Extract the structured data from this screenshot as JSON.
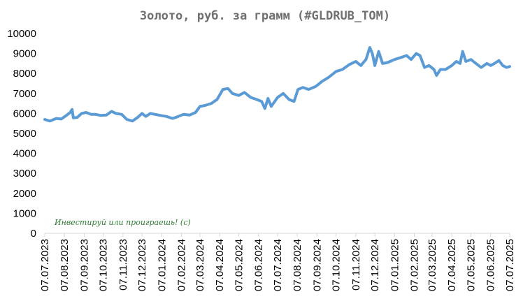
{
  "chart_data": {
    "type": "line",
    "title": "Золото, руб. за грамм (#GLDRUB_TOM)",
    "xlabel": "",
    "ylabel": "",
    "ylim": [
      0,
      10000
    ],
    "y_ticks": [
      0,
      1000,
      2000,
      3000,
      4000,
      5000,
      6000,
      7000,
      8000,
      9000,
      10000
    ],
    "x_ticks": [
      "07.07.2023",
      "07.08.2023",
      "07.09.2023",
      "07.10.2023",
      "07.11.2023",
      "07.12.2023",
      "07.01.2024",
      "07.02.2024",
      "07.03.2024",
      "07.04.2024",
      "07.05.2024",
      "07.06.2024",
      "07.07.2024",
      "07.08.2024",
      "07.09.2024",
      "07.10.2024",
      "07.11.2024",
      "07.12.2024",
      "07.01.2025",
      "07.02.2025",
      "07.03.2025",
      "07.04.2025",
      "07.05.2025",
      "07.06.2025",
      "07.07.2025"
    ],
    "grid": false,
    "line_color": "#5b9bd5",
    "annotation": "Инвестируй или проиграешь! (с)",
    "series": [
      {
        "name": "",
        "points": [
          [
            "07.07.2023",
            5700
          ],
          [
            "15.07.2023",
            5620
          ],
          [
            "25.07.2023",
            5750
          ],
          [
            "02.08.2023",
            5720
          ],
          [
            "10.08.2023",
            5900
          ],
          [
            "16.08.2023",
            6050
          ],
          [
            "19.08.2023",
            6200
          ],
          [
            "21.08.2023",
            5780
          ],
          [
            "27.08.2023",
            5800
          ],
          [
            "03.09.2023",
            6000
          ],
          [
            "10.09.2023",
            6050
          ],
          [
            "18.09.2023",
            5950
          ],
          [
            "25.09.2023",
            5950
          ],
          [
            "03.10.2023",
            5900
          ],
          [
            "12.10.2023",
            5920
          ],
          [
            "20.10.2023",
            6100
          ],
          [
            "27.10.2023",
            6000
          ],
          [
            "05.11.2023",
            5950
          ],
          [
            "13.11.2023",
            5700
          ],
          [
            "22.11.2023",
            5620
          ],
          [
            "30.11.2023",
            5800
          ],
          [
            "07.12.2023",
            6000
          ],
          [
            "13.12.2023",
            5850
          ],
          [
            "20.12.2023",
            6000
          ],
          [
            "05.01.2024",
            5900
          ],
          [
            "14.01.2024",
            5850
          ],
          [
            "24.01.2024",
            5750
          ],
          [
            "02.02.2024",
            5850
          ],
          [
            "10.02.2024",
            5950
          ],
          [
            "20.02.2024",
            5920
          ],
          [
            "29.02.2024",
            6050
          ],
          [
            "07.03.2024",
            6350
          ],
          [
            "15.03.2024",
            6400
          ],
          [
            "25.03.2024",
            6500
          ],
          [
            "03.04.2024",
            6700
          ],
          [
            "12.04.2024",
            7200
          ],
          [
            "20.04.2024",
            7250
          ],
          [
            "27.04.2024",
            7000
          ],
          [
            "07.05.2024",
            6900
          ],
          [
            "16.05.2024",
            7050
          ],
          [
            "26.05.2024",
            6800
          ],
          [
            "04.06.2024",
            6700
          ],
          [
            "12.06.2024",
            6600
          ],
          [
            "17.06.2024",
            6250
          ],
          [
            "22.06.2024",
            6750
          ],
          [
            "27.06.2024",
            6350
          ],
          [
            "07.07.2024",
            6800
          ],
          [
            "16.07.2024",
            7000
          ],
          [
            "25.07.2024",
            6700
          ],
          [
            "02.08.2024",
            6600
          ],
          [
            "08.08.2024",
            7200
          ],
          [
            "16.08.2024",
            7300
          ],
          [
            "25.08.2024",
            7200
          ],
          [
            "05.09.2024",
            7350
          ],
          [
            "15.09.2024",
            7600
          ],
          [
            "25.09.2024",
            7800
          ],
          [
            "07.10.2024",
            8100
          ],
          [
            "17.10.2024",
            8200
          ],
          [
            "28.10.2024",
            8450
          ],
          [
            "07.11.2024",
            8600
          ],
          [
            "15.11.2024",
            8400
          ],
          [
            "23.11.2024",
            8700
          ],
          [
            "29.11.2024",
            9300
          ],
          [
            "03.12.2024",
            9000
          ],
          [
            "07.12.2024",
            8400
          ],
          [
            "13.12.2024",
            9100
          ],
          [
            "19.12.2024",
            8500
          ],
          [
            "27.12.2024",
            8550
          ],
          [
            "07.01.2025",
            8700
          ],
          [
            "17.01.2025",
            8800
          ],
          [
            "26.01.2025",
            8900
          ],
          [
            "02.02.2025",
            8700
          ],
          [
            "10.02.2025",
            9000
          ],
          [
            "16.02.2025",
            8900
          ],
          [
            "23.02.2025",
            8300
          ],
          [
            "02.03.2025",
            8400
          ],
          [
            "10.03.2025",
            8200
          ],
          [
            "14.03.2025",
            7900
          ],
          [
            "20.03.2025",
            8200
          ],
          [
            "28.03.2025",
            8200
          ],
          [
            "07.04.2025",
            8400
          ],
          [
            "14.04.2025",
            8600
          ],
          [
            "20.04.2025",
            8500
          ],
          [
            "24.04.2025",
            9100
          ],
          [
            "29.04.2025",
            8600
          ],
          [
            "07.05.2025",
            8700
          ],
          [
            "15.05.2025",
            8500
          ],
          [
            "23.05.2025",
            8300
          ],
          [
            "01.06.2025",
            8500
          ],
          [
            "07.06.2025",
            8400
          ],
          [
            "13.06.2025",
            8500
          ],
          [
            "20.06.2025",
            8650
          ],
          [
            "26.06.2025",
            8400
          ],
          [
            "02.07.2025",
            8300
          ],
          [
            "07.07.2025",
            8350
          ]
        ]
      }
    ]
  }
}
